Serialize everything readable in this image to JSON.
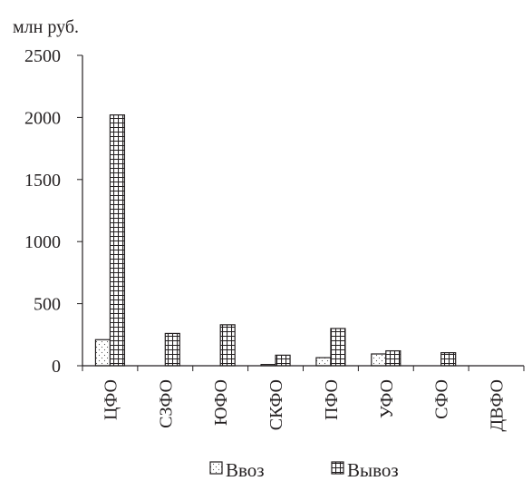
{
  "chart_data": {
    "type": "bar",
    "ylabel": "млн руб.",
    "categories": [
      "ЦФО",
      "СЗФО",
      "ЮФО",
      "СКФО",
      "ПФО",
      "УФО",
      "СФО",
      "ДВФО"
    ],
    "series": [
      {
        "name": "Ввоз",
        "values": [
          210,
          0,
          0,
          10,
          65,
          95,
          0,
          0
        ]
      },
      {
        "name": "Вывоз",
        "values": [
          2020,
          260,
          330,
          85,
          300,
          120,
          105,
          0
        ]
      }
    ],
    "ylim": [
      0,
      2500
    ],
    "yticks": [
      0,
      500,
      1000,
      1500,
      2000,
      2500
    ],
    "grid": false,
    "legend_position": "bottom"
  }
}
